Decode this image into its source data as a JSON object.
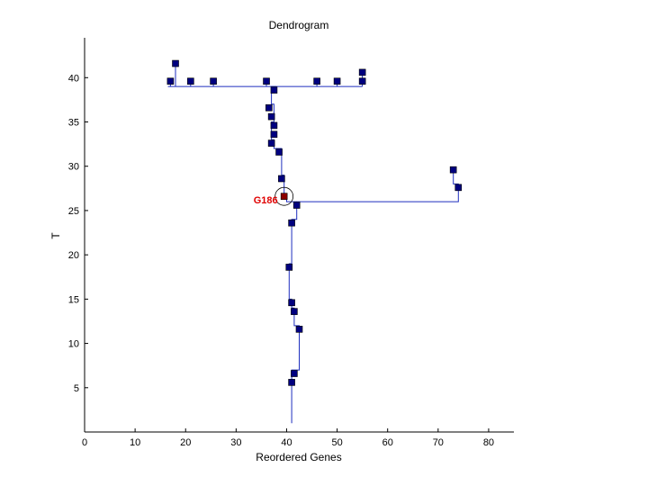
{
  "chart_data": {
    "type": "scatter",
    "title": "Dendrogram",
    "xlabel": "Reordered Genes",
    "ylabel": "T",
    "xlim": [
      0,
      85
    ],
    "ylim": [
      0,
      44.5
    ],
    "x_ticks": [
      0,
      10,
      20,
      30,
      40,
      50,
      60,
      70,
      80
    ],
    "y_ticks": [
      5,
      10,
      15,
      20,
      25,
      30,
      35,
      40
    ],
    "grid": false,
    "colors": {
      "line": "#1f2fbf",
      "marker_fill": "#00007f",
      "highlight_fill": "#8b0000",
      "highlight_label": "#e00000",
      "axis": "#000000"
    },
    "branches": [
      {
        "path": [
          [
            41,
            1
          ],
          [
            41,
            7
          ],
          [
            42.5,
            7
          ],
          [
            42.5,
            12
          ],
          [
            41.5,
            12
          ],
          [
            41.5,
            14
          ],
          [
            41,
            14
          ],
          [
            41,
            15
          ],
          [
            40.5,
            15
          ],
          [
            40.5,
            19
          ],
          [
            41,
            19
          ],
          [
            41,
            24
          ],
          [
            42,
            24
          ],
          [
            42,
            26
          ],
          [
            74,
            26
          ],
          [
            74,
            28
          ],
          [
            73,
            28
          ],
          [
            73,
            29.7
          ]
        ]
      },
      {
        "path": [
          [
            42,
            26
          ],
          [
            40,
            26
          ],
          [
            40,
            26.5
          ],
          [
            39.5,
            26.5
          ],
          [
            39.5,
            29
          ],
          [
            39,
            29
          ],
          [
            39,
            32
          ],
          [
            37.5,
            32
          ],
          [
            37.5,
            33
          ],
          [
            37,
            33
          ],
          [
            37,
            35
          ],
          [
            37.5,
            35
          ],
          [
            37.5,
            37
          ],
          [
            37,
            37
          ],
          [
            37,
            39
          ],
          [
            38,
            39
          ],
          [
            38,
            39
          ]
        ]
      },
      {
        "path": [
          [
            16.5,
            39
          ],
          [
            55,
            39
          ]
        ]
      },
      {
        "path": [
          [
            17,
            39
          ],
          [
            17,
            39.6
          ]
        ]
      },
      {
        "path": [
          [
            18,
            39
          ],
          [
            18,
            41.6
          ]
        ]
      },
      {
        "path": [
          [
            21,
            39
          ],
          [
            21,
            39.6
          ]
        ]
      },
      {
        "path": [
          [
            25.5,
            39
          ],
          [
            25.5,
            39.6
          ]
        ]
      },
      {
        "path": [
          [
            36,
            39
          ],
          [
            36,
            39.6
          ]
        ]
      },
      {
        "path": [
          [
            46,
            39
          ],
          [
            46,
            39.6
          ]
        ]
      },
      {
        "path": [
          [
            50,
            39
          ],
          [
            50,
            39.6
          ]
        ]
      },
      {
        "path": [
          [
            55,
            39
          ],
          [
            55,
            40.6
          ]
        ]
      }
    ],
    "points": [
      {
        "x": 18,
        "y": 41.6
      },
      {
        "x": 17,
        "y": 39.6
      },
      {
        "x": 21,
        "y": 39.6
      },
      {
        "x": 25.5,
        "y": 39.6
      },
      {
        "x": 36,
        "y": 39.6
      },
      {
        "x": 46,
        "y": 39.6
      },
      {
        "x": 50,
        "y": 39.6
      },
      {
        "x": 55,
        "y": 39.6
      },
      {
        "x": 55,
        "y": 40.6
      },
      {
        "x": 37.5,
        "y": 38.6
      },
      {
        "x": 36.5,
        "y": 36.6
      },
      {
        "x": 37,
        "y": 35.6
      },
      {
        "x": 37.5,
        "y": 34.6
      },
      {
        "x": 37.5,
        "y": 33.6
      },
      {
        "x": 37,
        "y": 32.6
      },
      {
        "x": 38.5,
        "y": 31.6
      },
      {
        "x": 39,
        "y": 28.6
      },
      {
        "x": 42,
        "y": 25.6
      },
      {
        "x": 41,
        "y": 23.6
      },
      {
        "x": 40.5,
        "y": 18.6
      },
      {
        "x": 41,
        "y": 14.6
      },
      {
        "x": 41.5,
        "y": 13.6
      },
      {
        "x": 42.5,
        "y": 11.6
      },
      {
        "x": 41.5,
        "y": 6.6
      },
      {
        "x": 41,
        "y": 5.6
      },
      {
        "x": 73,
        "y": 29.6
      },
      {
        "x": 74,
        "y": 27.6
      }
    ],
    "highlight": {
      "label": "G186",
      "x": 39.5,
      "y": 26.6
    }
  }
}
